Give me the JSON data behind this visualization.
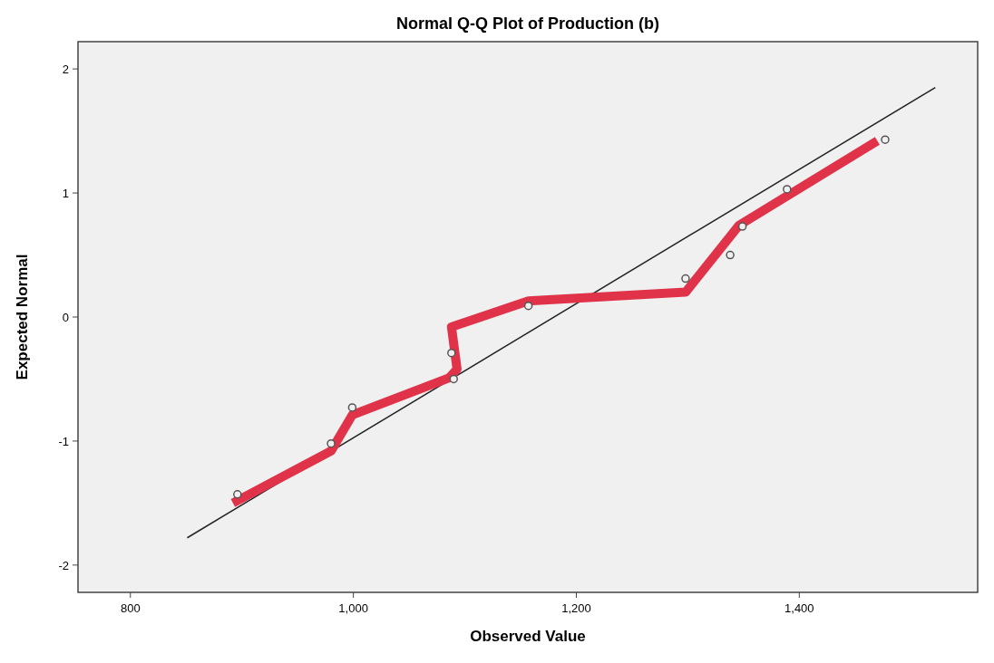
{
  "chart_data": {
    "type": "scatter",
    "title": "Normal Q-Q Plot of Production (b)",
    "xlabel": "Observed Value",
    "ylabel": "Expected Normal",
    "xlim": [
      753,
      1560
    ],
    "ylim": [
      -2.22,
      2.22
    ],
    "xticks": [
      800,
      {
        "value": 1000,
        "label": "1,000"
      },
      {
        "value": 1200,
        "label": "1,200"
      },
      {
        "value": 1400,
        "label": "1,400"
      }
    ],
    "yticks": [
      -2,
      -1,
      0,
      1,
      2
    ],
    "grid": false,
    "series": [
      {
        "type": "line",
        "color": "#222222",
        "marker": "none",
        "line_style": "solid",
        "x": [
          851,
          1522
        ],
        "values": [
          -1.78,
          1.85
        ]
      },
      {
        "type": "line",
        "color": "#e0334a",
        "marker": "none",
        "line_style": "solid",
        "x": [
          892,
          980,
          999,
          1086,
          1093,
          1088,
          1157,
          1298,
          1346,
          1470
        ],
        "values": [
          -1.5,
          -1.08,
          -0.79,
          -0.49,
          -0.42,
          -0.08,
          0.13,
          0.2,
          0.74,
          1.42
        ]
      },
      {
        "color": "#555555",
        "marker": "circle",
        "x": [
          896,
          980,
          999,
          1090,
          1088,
          1157,
          1298,
          1338,
          1349,
          1389,
          1477
        ],
        "values": [
          -1.43,
          -1.02,
          -0.73,
          -0.5,
          -0.29,
          0.09,
          0.31,
          0.5,
          0.73,
          1.03,
          1.43
        ]
      }
    ]
  }
}
